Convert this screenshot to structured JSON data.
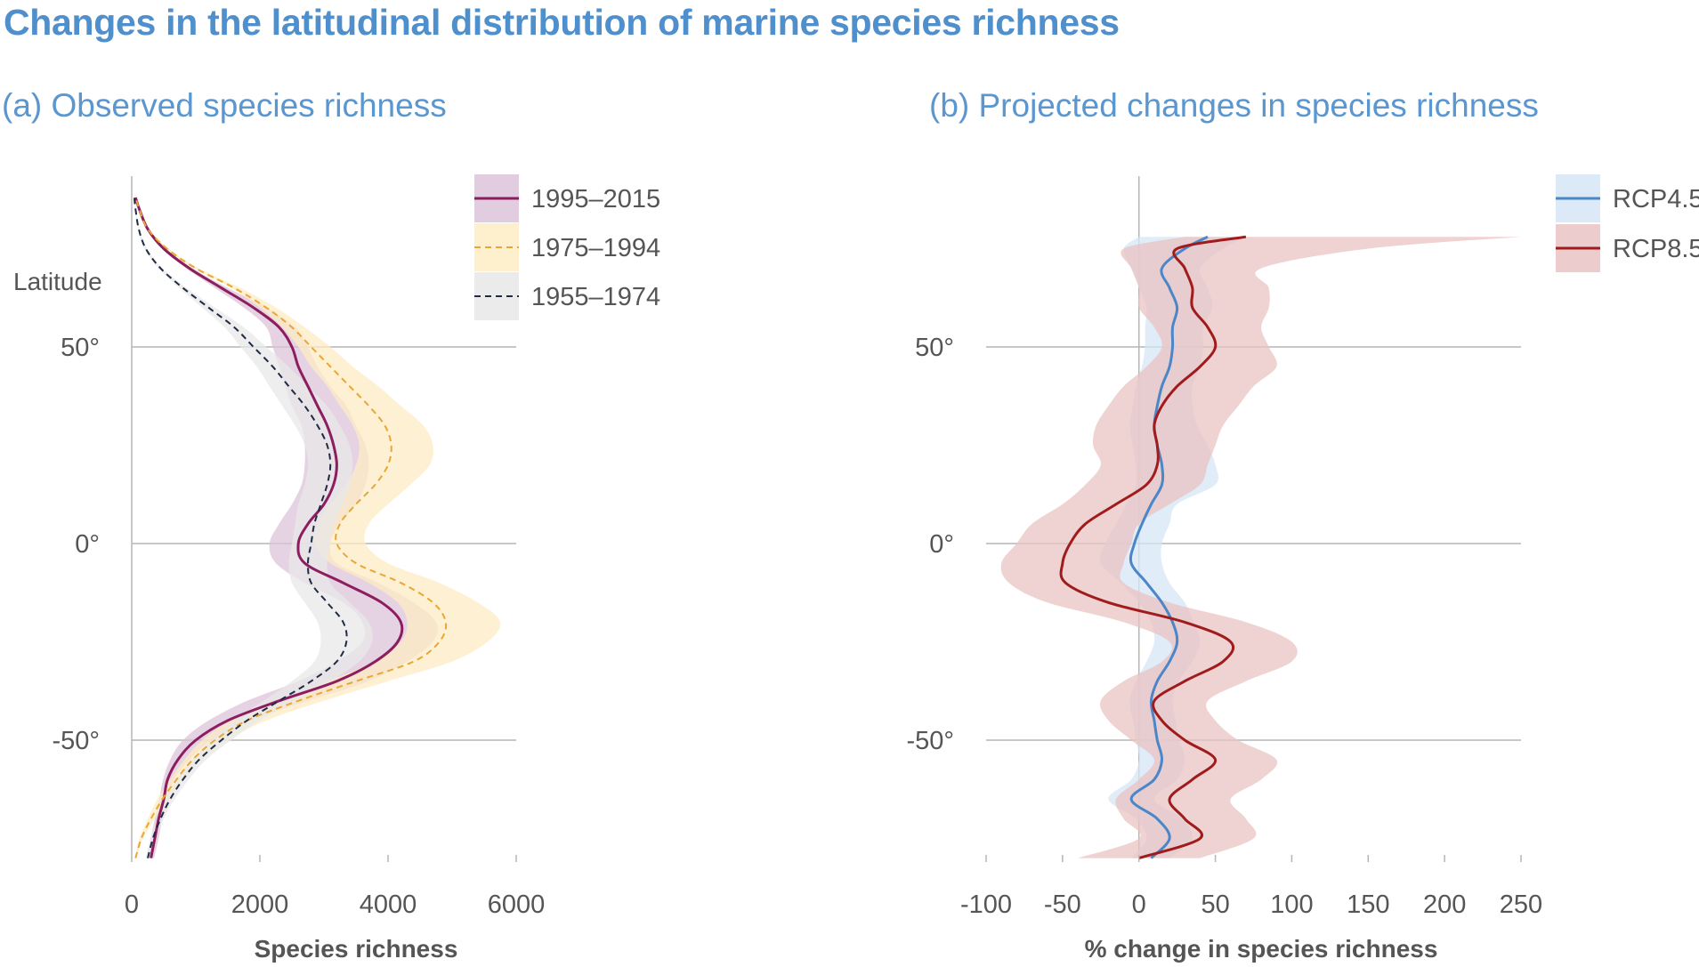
{
  "title": "Changes in the latitudinal distribution of marine species richness",
  "chart_data": [
    {
      "type": "line",
      "title": "(a) Observed species richness",
      "xlabel": "Species richness",
      "ylabel": "Latitude",
      "xlim": [
        0,
        6000
      ],
      "ylim": [
        -80,
        90
      ],
      "x_ticks": [
        0,
        2000,
        4000,
        6000
      ],
      "x_tick_labels": [
        "0",
        "2000",
        "4000",
        "6000"
      ],
      "y_ticks": [
        50,
        0,
        -50
      ],
      "y_tick_labels": [
        "50°",
        "0°",
        "-50°"
      ],
      "grid": "horizontal at 50, 0, -50",
      "legend_position": "top-right",
      "latitudes": [
        -80,
        -75,
        -70,
        -65,
        -60,
        -55,
        -50,
        -45,
        -40,
        -35,
        -30,
        -25,
        -20,
        -15,
        -10,
        -5,
        0,
        5,
        10,
        15,
        20,
        25,
        30,
        35,
        40,
        45,
        50,
        55,
        60,
        65,
        70,
        75,
        80,
        85,
        88
      ],
      "series": [
        {
          "name": "1995–2015",
          "color": "#8c1d5e",
          "fill": "#dcc3da",
          "style": "solid",
          "values": [
            300,
            360,
            420,
            500,
            560,
            720,
            1000,
            1500,
            2300,
            3200,
            3800,
            4150,
            4200,
            3900,
            3300,
            2700,
            2600,
            2750,
            3000,
            3150,
            3200,
            3150,
            3050,
            2900,
            2750,
            2600,
            2500,
            2300,
            1900,
            1400,
            900,
            500,
            250,
            120,
            60
          ],
          "low": [
            250,
            300,
            360,
            430,
            490,
            600,
            800,
            1200,
            1800,
            2600,
            3200,
            3600,
            3600,
            3300,
            2700,
            2250,
            2150,
            2300,
            2500,
            2650,
            2700,
            2700,
            2650,
            2500,
            2400,
            2300,
            2200,
            2100,
            1750,
            1300,
            850,
            470,
            230,
            110,
            55
          ],
          "high": [
            350,
            420,
            480,
            580,
            660,
            900,
            1250,
            1850,
            2750,
            3700,
            4300,
            4700,
            4750,
            4400,
            3850,
            3200,
            3100,
            3250,
            3500,
            3650,
            3700,
            3650,
            3500,
            3350,
            3100,
            2900,
            2750,
            2550,
            2100,
            1500,
            950,
            530,
            270,
            130,
            65
          ]
        },
        {
          "name": "1975–1994",
          "color": "#e8a735",
          "fill": "#feecc4",
          "style": "dashed",
          "values": [
            60,
            150,
            300,
            480,
            700,
            950,
            1300,
            1800,
            2600,
            3500,
            4400,
            4800,
            4900,
            4700,
            4200,
            3500,
            3200,
            3250,
            3500,
            3800,
            4000,
            4050,
            3950,
            3700,
            3400,
            3100,
            2800,
            2500,
            2100,
            1600,
            1000,
            550,
            250,
            120,
            60
          ],
          "low": [
            50,
            120,
            250,
            400,
            600,
            820,
            1100,
            1550,
            2250,
            3050,
            3800,
            4200,
            4300,
            4150,
            3700,
            3100,
            2850,
            2900,
            3100,
            3350,
            3500,
            3550,
            3450,
            3250,
            3050,
            2800,
            2600,
            2350,
            2000,
            1550,
            970,
            520,
            240,
            115,
            55
          ],
          "high": [
            70,
            180,
            360,
            560,
            820,
            1100,
            1500,
            2100,
            3000,
            4000,
            5000,
            5550,
            5750,
            5400,
            4800,
            4000,
            3650,
            3700,
            4000,
            4350,
            4650,
            4700,
            4550,
            4200,
            3850,
            3450,
            3100,
            2700,
            2250,
            1700,
            1050,
            580,
            270,
            130,
            65
          ]
        },
        {
          "name": "1955–1974",
          "color": "#1f2a44",
          "fill": "#e8e8e8",
          "style": "dashed",
          "values": [
            250,
            330,
            450,
            600,
            800,
            1050,
            1400,
            1800,
            2300,
            2800,
            3200,
            3350,
            3300,
            3050,
            2800,
            2750,
            2800,
            2850,
            2950,
            3050,
            3100,
            3050,
            2900,
            2700,
            2450,
            2200,
            1900,
            1600,
            1200,
            800,
            450,
            220,
            110,
            60,
            40
          ],
          "low": [
            220,
            290,
            400,
            530,
            710,
            940,
            1250,
            1600,
            2050,
            2500,
            2850,
            2950,
            2900,
            2700,
            2500,
            2450,
            2500,
            2550,
            2600,
            2700,
            2750,
            2700,
            2550,
            2350,
            2150,
            1950,
            1700,
            1450,
            1100,
            740,
            420,
            200,
            100,
            55,
            35
          ],
          "high": [
            280,
            370,
            500,
            670,
            890,
            1160,
            1550,
            2000,
            2550,
            3100,
            3550,
            3750,
            3700,
            3400,
            3100,
            3050,
            3100,
            3150,
            3300,
            3400,
            3450,
            3400,
            3250,
            3050,
            2750,
            2450,
            2100,
            1750,
            1300,
            860,
            480,
            240,
            120,
            65,
            45
          ]
        }
      ]
    },
    {
      "type": "line",
      "title": "(b) Projected changes in species richness",
      "xlabel": "% change in species richness",
      "xlim": [
        -100,
        250
      ],
      "ylim": [
        -80,
        90
      ],
      "x_ticks": [
        -100,
        -50,
        0,
        50,
        100,
        150,
        200,
        250
      ],
      "x_tick_labels": [
        "-100",
        "-50",
        "0",
        "50",
        "100",
        "150",
        "200",
        "250"
      ],
      "y_ticks": [
        50,
        0,
        -50
      ],
      "y_tick_labels": [
        "50°",
        "0°",
        "-50°"
      ],
      "grid": "horizontal at 50, 0, -50; vertical at 0",
      "legend_position": "top-right",
      "latitudes": [
        -80,
        -75,
        -70,
        -65,
        -60,
        -55,
        -50,
        -45,
        -40,
        -35,
        -30,
        -25,
        -20,
        -15,
        -10,
        -5,
        0,
        5,
        10,
        15,
        20,
        25,
        30,
        35,
        40,
        45,
        50,
        55,
        60,
        65,
        70,
        75,
        78
      ],
      "series": [
        {
          "name": "RCP4.5",
          "color": "#4a86c8",
          "fill": "#d6e5f4",
          "style": "solid",
          "values": [
            8,
            20,
            12,
            -5,
            10,
            15,
            12,
            10,
            8,
            12,
            20,
            25,
            22,
            15,
            5,
            -5,
            -3,
            2,
            8,
            15,
            15,
            12,
            10,
            12,
            15,
            20,
            22,
            22,
            25,
            20,
            15,
            30,
            45
          ],
          "low": [
            -5,
            5,
            -2,
            -20,
            -5,
            0,
            -2,
            -4,
            -6,
            -2,
            5,
            10,
            8,
            0,
            -12,
            -25,
            -22,
            -15,
            -8,
            -2,
            -2,
            -4,
            -6,
            -4,
            -2,
            2,
            4,
            4,
            5,
            0,
            -5,
            -10,
            0
          ],
          "high": [
            20,
            35,
            28,
            10,
            25,
            30,
            26,
            24,
            22,
            26,
            35,
            40,
            36,
            30,
            20,
            15,
            15,
            20,
            25,
            50,
            50,
            45,
            38,
            35,
            35,
            40,
            42,
            42,
            48,
            45,
            40,
            55,
            70
          ]
        },
        {
          "name": "RCP8.5",
          "color": "#a01c1c",
          "fill": "#e9c3c3",
          "style": "solid",
          "values": [
            0,
            40,
            30,
            20,
            35,
            50,
            30,
            15,
            10,
            30,
            55,
            60,
            30,
            -20,
            -48,
            -50,
            -45,
            -35,
            -15,
            5,
            12,
            12,
            10,
            15,
            25,
            40,
            50,
            45,
            35,
            35,
            30,
            25,
            70
          ],
          "low": [
            -40,
            0,
            -10,
            -15,
            0,
            10,
            -5,
            -20,
            -25,
            -10,
            15,
            20,
            -10,
            -60,
            -85,
            -90,
            -80,
            -70,
            -50,
            -35,
            -25,
            -30,
            -28,
            -20,
            -10,
            5,
            15,
            10,
            0,
            0,
            -5,
            -10,
            30
          ],
          "high": [
            40,
            75,
            70,
            60,
            80,
            90,
            65,
            50,
            45,
            70,
            100,
            100,
            70,
            20,
            -10,
            -10,
            -5,
            0,
            20,
            40,
            45,
            50,
            55,
            65,
            75,
            90,
            85,
            80,
            85,
            85,
            80,
            150,
            250
          ]
        }
      ]
    }
  ]
}
